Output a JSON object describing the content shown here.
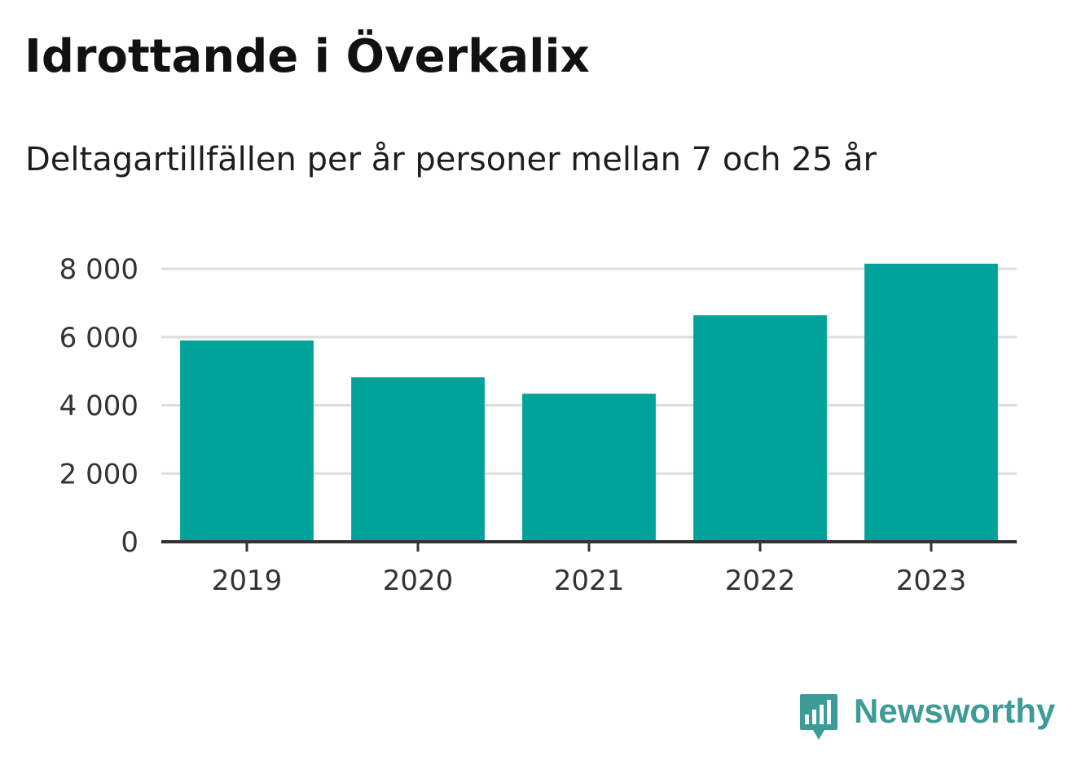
{
  "header": {
    "title": "Idrottande i Överkalix",
    "subtitle": "Deltagartillfällen per år personer mellan 7 och 25 år"
  },
  "brand": {
    "name": "Newsworthy",
    "icon": "newsworthy-logo-icon",
    "color": "#3d9c98"
  },
  "chart_data": {
    "type": "bar",
    "title": "Idrottande i Överkalix",
    "subtitle": "Deltagartillfällen per år personer mellan 7 och 25 år",
    "categories": [
      "2019",
      "2020",
      "2021",
      "2022",
      "2023"
    ],
    "values": [
      5900,
      4820,
      4340,
      6640,
      8150
    ],
    "ylim": [
      0,
      8000
    ],
    "yticks": [
      0,
      2000,
      4000,
      6000,
      8000
    ],
    "ytick_labels": [
      "0",
      "2 000",
      "4 000",
      "6 000",
      "8 000"
    ],
    "grid": true,
    "legend": "none",
    "bar_color": "#00a39a",
    "grid_color": "#dddddd",
    "axis_color": "#333333"
  }
}
